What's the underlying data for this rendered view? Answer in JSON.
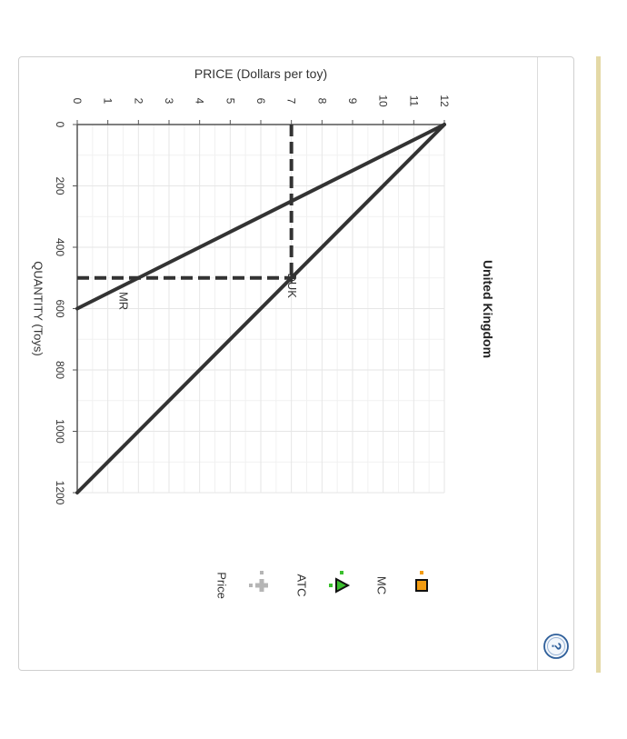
{
  "chart_data": {
    "type": "line",
    "title": "United Kingdom",
    "xlabel": "QUANTITY (Toys)",
    "ylabel": "PRICE (Dollars per toy)",
    "xlim": [
      0,
      1200
    ],
    "ylim": [
      0,
      12
    ],
    "x_ticks": [
      "0",
      "200",
      "400",
      "600",
      "800",
      "1000",
      "1200"
    ],
    "y_ticks": [
      "0",
      "1",
      "2",
      "3",
      "4",
      "5",
      "6",
      "7",
      "8",
      "9",
      "10",
      "11",
      "12"
    ],
    "x_tick_values": [
      0,
      200,
      400,
      600,
      800,
      1000,
      1200
    ],
    "y_tick_values": [
      0,
      1,
      2,
      3,
      4,
      5,
      6,
      7,
      8,
      9,
      10,
      11,
      12
    ],
    "grid": true,
    "orientation": "rotated 90 degrees clockwise",
    "series": [
      {
        "name": "DUK",
        "kind": "line",
        "points": [
          [
            0,
            12
          ],
          [
            1200,
            0
          ]
        ],
        "label_at": [
          525,
          7.2
        ]
      },
      {
        "name": "MR",
        "kind": "line",
        "points": [
          [
            0,
            12
          ],
          [
            600,
            0
          ]
        ],
        "label_at": [
          575,
          1.7
        ]
      }
    ],
    "reference_lines": [
      {
        "kind": "horizontal-dashed",
        "points": [
          [
            0,
            7
          ],
          [
            500,
            7
          ]
        ]
      },
      {
        "kind": "vertical-dashed",
        "points": [
          [
            500,
            0
          ],
          [
            500,
            7
          ]
        ]
      }
    ],
    "legend": {
      "placement": "right",
      "items": [
        {
          "label": "MC",
          "icon": "orange-square-icon",
          "color": "#f39c12"
        },
        {
          "label": "ATC",
          "icon": "green-triangle-icon",
          "color": "#3bbf2e"
        },
        {
          "label": "Price",
          "icon": "gray-cross-icon",
          "color": "#b5b5b5"
        }
      ]
    },
    "colors": {
      "line": "#333333",
      "grid": "#e6e6e6",
      "axis": "#555555"
    }
  },
  "help": {
    "icon": "question-mark-icon",
    "glyph": "?"
  }
}
